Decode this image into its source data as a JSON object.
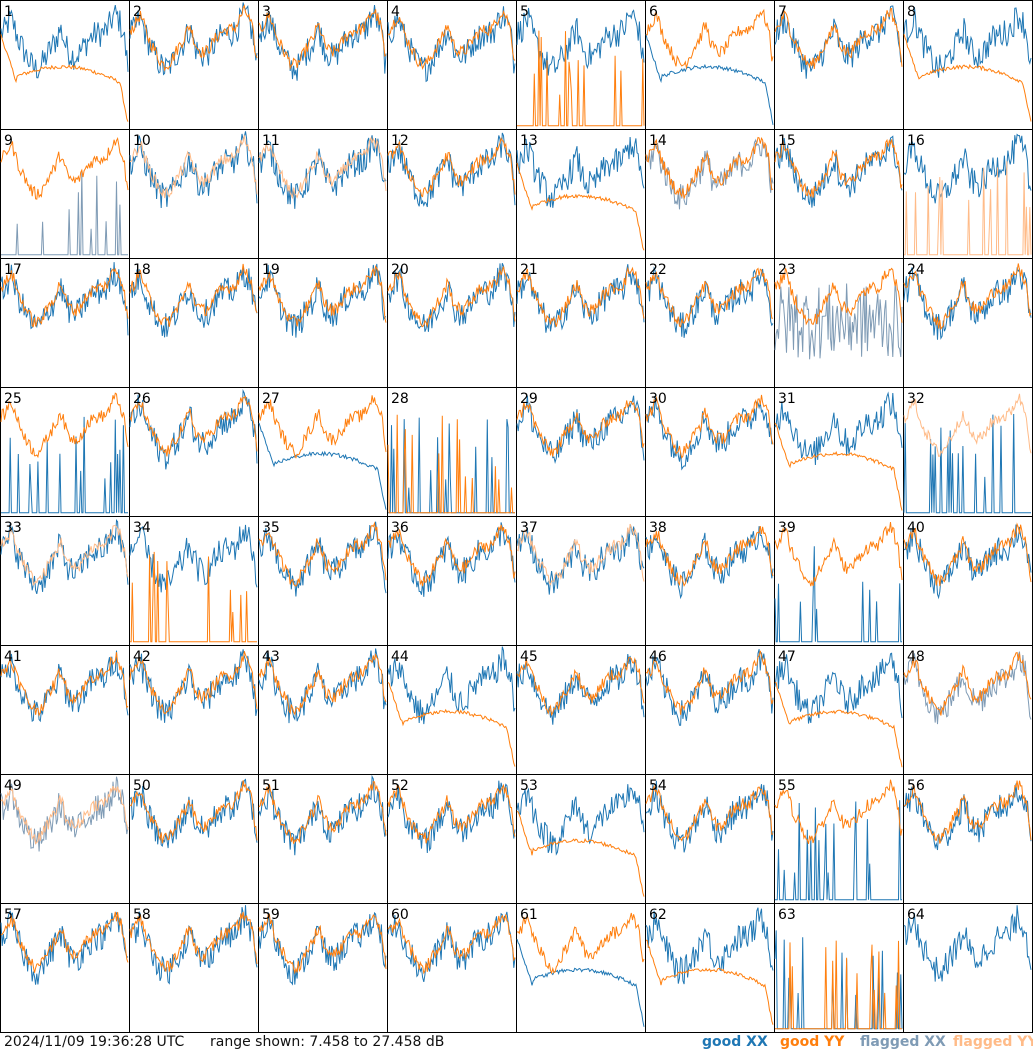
{
  "footer": {
    "timestamp": "2024/11/09 19:36:28 UTC",
    "range_text": "range shown: 7.458 to 27.458 dB"
  },
  "legend": [
    {
      "label": "good XX",
      "color": "#1f77b4"
    },
    {
      "label": "good YY",
      "color": "#ff7f0e"
    },
    {
      "label": "flagged XX",
      "color": "#7f9bb5"
    },
    {
      "label": "flagged YY",
      "color": "#ffbb88"
    }
  ],
  "chart_data": {
    "type": "line",
    "layout": "8x8 small multiples",
    "ylim": [
      7.458,
      27.458
    ],
    "panels": [
      {
        "id": 1,
        "xx": "good",
        "yy": "good",
        "yy_shape": "slope"
      },
      {
        "id": 2,
        "xx": "good",
        "yy": "good"
      },
      {
        "id": 3,
        "xx": "good",
        "yy": "good"
      },
      {
        "id": 4,
        "xx": "good",
        "yy": "good"
      },
      {
        "id": 5,
        "xx": "good",
        "yy": "good",
        "yy_shape": "spikes"
      },
      {
        "id": 6,
        "xx": "good",
        "yy": "good",
        "xx_shape": "slope"
      },
      {
        "id": 7,
        "xx": "good",
        "yy": "good"
      },
      {
        "id": 8,
        "xx": "good",
        "yy": "good",
        "yy_shape": "slope"
      },
      {
        "id": 9,
        "xx": "flagged",
        "yy": "good",
        "xx_shape": "spikes"
      },
      {
        "id": 10,
        "xx": "good",
        "yy": "flagged"
      },
      {
        "id": 11,
        "xx": "good",
        "yy": "flagged"
      },
      {
        "id": 12,
        "xx": "good",
        "yy": "good"
      },
      {
        "id": 13,
        "xx": "good",
        "yy": "good",
        "yy_shape": "slope"
      },
      {
        "id": 14,
        "xx": "flagged",
        "yy": "good"
      },
      {
        "id": 15,
        "xx": "good",
        "yy": "good"
      },
      {
        "id": 16,
        "xx": "good",
        "yy": "flagged",
        "yy_shape": "spikes"
      },
      {
        "id": 17,
        "xx": "good",
        "yy": "good"
      },
      {
        "id": 18,
        "xx": "good",
        "yy": "good"
      },
      {
        "id": 19,
        "xx": "good",
        "yy": "good"
      },
      {
        "id": 20,
        "xx": "good",
        "yy": "good"
      },
      {
        "id": 21,
        "xx": "good",
        "yy": "good"
      },
      {
        "id": 22,
        "xx": "good",
        "yy": "good"
      },
      {
        "id": 23,
        "xx": "flagged",
        "yy": "good",
        "xx_shape": "noisy"
      },
      {
        "id": 24,
        "xx": "good",
        "yy": "good"
      },
      {
        "id": 25,
        "xx": "good",
        "yy": "good",
        "xx_shape": "spikes"
      },
      {
        "id": 26,
        "xx": "good",
        "yy": "good"
      },
      {
        "id": 27,
        "xx": "good",
        "yy": "good",
        "xx_shape": "slope"
      },
      {
        "id": 28,
        "xx": "good",
        "yy": "good",
        "yy_shape": "spikes",
        "xx_shape": "spikes"
      },
      {
        "id": 29,
        "xx": "good",
        "yy": "good"
      },
      {
        "id": 30,
        "xx": "good",
        "yy": "good"
      },
      {
        "id": 31,
        "xx": "good",
        "yy": "good",
        "yy_shape": "slope"
      },
      {
        "id": 32,
        "xx": "good",
        "yy": "flagged",
        "xx_shape": "spikes"
      },
      {
        "id": 33,
        "xx": "good",
        "yy": "flagged"
      },
      {
        "id": 34,
        "xx": "good",
        "yy": "good",
        "yy_shape": "spikes"
      },
      {
        "id": 35,
        "xx": "good",
        "yy": "good"
      },
      {
        "id": 36,
        "xx": "good",
        "yy": "good"
      },
      {
        "id": 37,
        "xx": "good",
        "yy": "flagged"
      },
      {
        "id": 38,
        "xx": "good",
        "yy": "good"
      },
      {
        "id": 39,
        "xx": "good",
        "yy": "good",
        "xx_shape": "spikes"
      },
      {
        "id": 40,
        "xx": "good",
        "yy": "good"
      },
      {
        "id": 41,
        "xx": "good",
        "yy": "good"
      },
      {
        "id": 42,
        "xx": "good",
        "yy": "good"
      },
      {
        "id": 43,
        "xx": "good",
        "yy": "good"
      },
      {
        "id": 44,
        "xx": "good",
        "yy": "good",
        "yy_shape": "slope"
      },
      {
        "id": 45,
        "xx": "good",
        "yy": "good"
      },
      {
        "id": 46,
        "xx": "good",
        "yy": "good"
      },
      {
        "id": 47,
        "xx": "good",
        "yy": "good",
        "yy_shape": "slope"
      },
      {
        "id": 48,
        "xx": "flagged",
        "yy": "good"
      },
      {
        "id": 49,
        "xx": "flagged",
        "yy": "flagged"
      },
      {
        "id": 50,
        "xx": "good",
        "yy": "good"
      },
      {
        "id": 51,
        "xx": "good",
        "yy": "good"
      },
      {
        "id": 52,
        "xx": "good",
        "yy": "good"
      },
      {
        "id": 53,
        "xx": "good",
        "yy": "good",
        "yy_shape": "slope"
      },
      {
        "id": 54,
        "xx": "good",
        "yy": "good"
      },
      {
        "id": 55,
        "xx": "good",
        "yy": "good",
        "xx_shape": "spikes"
      },
      {
        "id": 56,
        "xx": "good",
        "yy": "good"
      },
      {
        "id": 57,
        "xx": "good",
        "yy": "good"
      },
      {
        "id": 58,
        "xx": "good",
        "yy": "good"
      },
      {
        "id": 59,
        "xx": "good",
        "yy": "good"
      },
      {
        "id": 60,
        "xx": "good",
        "yy": "good"
      },
      {
        "id": 61,
        "xx": "good",
        "yy": "good",
        "xx_shape": "slope"
      },
      {
        "id": 62,
        "xx": "good",
        "yy": "good",
        "yy_shape": "slope"
      },
      {
        "id": 63,
        "xx": "good",
        "yy": "good",
        "yy_shape": "spikes",
        "xx_shape": "spikes"
      },
      {
        "id": 64,
        "xx": "good",
        "yy": "good",
        "yy_shape": "none"
      }
    ]
  }
}
